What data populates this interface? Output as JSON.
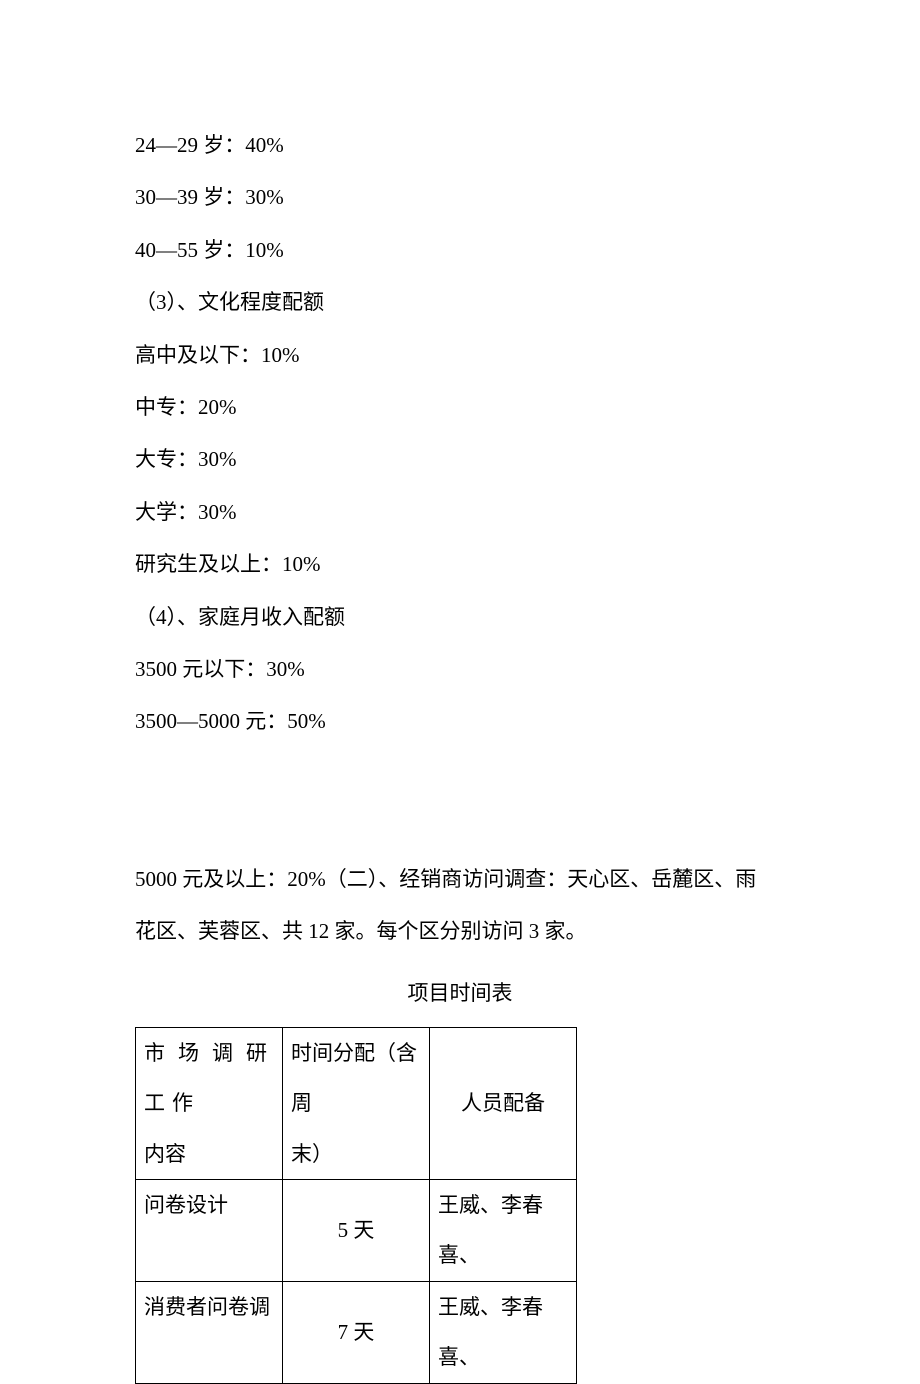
{
  "lines": {
    "age1": "24—29 岁：40%",
    "age2": "30—39 岁：30%",
    "age3": "40—55 岁：10%",
    "eduHeader": "（3）、文化程度配额",
    "edu1": "高中及以下：10%",
    "edu2": "中专：20%",
    "edu3": "大专：30%",
    "edu4": "大学：30%",
    "edu5": "研究生及以上：10%",
    "incomeHeader": "（4）、家庭月收入配额",
    "income1": "3500 元以下：30%",
    "income2": "3500—5000 元：50%",
    "income3a": "5000 元及以上：20%（二）、经销商访问调查：天心区、岳麓区、雨",
    "income3b": "花区、芙蓉区、共 12 家。每个区分别访问 3 家。"
  },
  "table": {
    "title": "项目时间表",
    "header": {
      "c1a": "市场调研工作",
      "c1b": "内容",
      "c2a": "时间分配（含周",
      "c2b": "末）",
      "c3": "人员配备"
    },
    "rows": [
      {
        "c1": "问卷设计",
        "c2": "5 天",
        "c3": "王威、李春喜、"
      },
      {
        "c1": "消费者问卷调",
        "c2": "7 天",
        "c3": "王威、李春喜、"
      }
    ]
  }
}
